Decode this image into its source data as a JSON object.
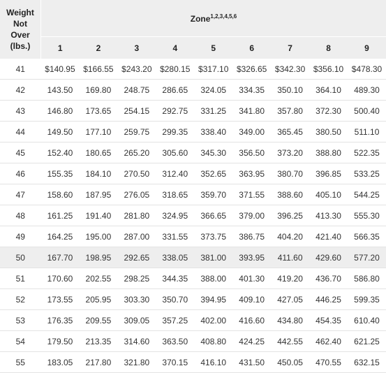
{
  "header": {
    "weight_label": [
      "Weight",
      "Not",
      "Over",
      "(lbs.)"
    ],
    "zone_label": "Zone",
    "zone_superscript": "1,2,3,4,5,6",
    "zones": [
      "1",
      "2",
      "3",
      "4",
      "5",
      "6",
      "7",
      "8",
      "9"
    ]
  },
  "rows": [
    {
      "weight": "41",
      "prices": [
        "$140.95",
        "$166.55",
        "$243.20",
        "$280.15",
        "$317.10",
        "$326.65",
        "$342.30",
        "$356.10",
        "$478.30"
      ]
    },
    {
      "weight": "42",
      "prices": [
        "143.50",
        "169.80",
        "248.75",
        "286.65",
        "324.05",
        "334.35",
        "350.10",
        "364.10",
        "489.30"
      ]
    },
    {
      "weight": "43",
      "prices": [
        "146.80",
        "173.65",
        "254.15",
        "292.75",
        "331.25",
        "341.80",
        "357.80",
        "372.30",
        "500.40"
      ]
    },
    {
      "weight": "44",
      "prices": [
        "149.50",
        "177.10",
        "259.75",
        "299.35",
        "338.40",
        "349.00",
        "365.45",
        "380.50",
        "511.10"
      ]
    },
    {
      "weight": "45",
      "prices": [
        "152.40",
        "180.65",
        "265.20",
        "305.60",
        "345.30",
        "356.50",
        "373.20",
        "388.80",
        "522.35"
      ]
    },
    {
      "weight": "46",
      "prices": [
        "155.35",
        "184.10",
        "270.50",
        "312.40",
        "352.65",
        "363.95",
        "380.70",
        "396.85",
        "533.25"
      ]
    },
    {
      "weight": "47",
      "prices": [
        "158.60",
        "187.95",
        "276.05",
        "318.65",
        "359.70",
        "371.55",
        "388.60",
        "405.10",
        "544.25"
      ]
    },
    {
      "weight": "48",
      "prices": [
        "161.25",
        "191.40",
        "281.80",
        "324.95",
        "366.65",
        "379.00",
        "396.25",
        "413.30",
        "555.30"
      ]
    },
    {
      "weight": "49",
      "prices": [
        "164.25",
        "195.00",
        "287.00",
        "331.55",
        "373.75",
        "386.75",
        "404.20",
        "421.40",
        "566.35"
      ]
    },
    {
      "weight": "50",
      "prices": [
        "167.70",
        "198.95",
        "292.65",
        "338.05",
        "381.00",
        "393.95",
        "411.60",
        "429.60",
        "577.20"
      ]
    },
    {
      "weight": "51",
      "prices": [
        "170.60",
        "202.55",
        "298.25",
        "344.35",
        "388.00",
        "401.30",
        "419.20",
        "436.70",
        "586.80"
      ]
    },
    {
      "weight": "52",
      "prices": [
        "173.55",
        "205.95",
        "303.30",
        "350.70",
        "394.95",
        "409.10",
        "427.05",
        "446.25",
        "599.35"
      ]
    },
    {
      "weight": "53",
      "prices": [
        "176.35",
        "209.55",
        "309.05",
        "357.25",
        "402.00",
        "416.60",
        "434.80",
        "454.35",
        "610.40"
      ]
    },
    {
      "weight": "54",
      "prices": [
        "179.50",
        "213.35",
        "314.60",
        "363.50",
        "408.80",
        "424.25",
        "442.55",
        "462.40",
        "621.25"
      ]
    },
    {
      "weight": "55",
      "prices": [
        "183.05",
        "217.80",
        "321.80",
        "370.15",
        "416.10",
        "431.50",
        "450.05",
        "470.55",
        "632.15"
      ]
    }
  ],
  "highlighted_row": "50"
}
